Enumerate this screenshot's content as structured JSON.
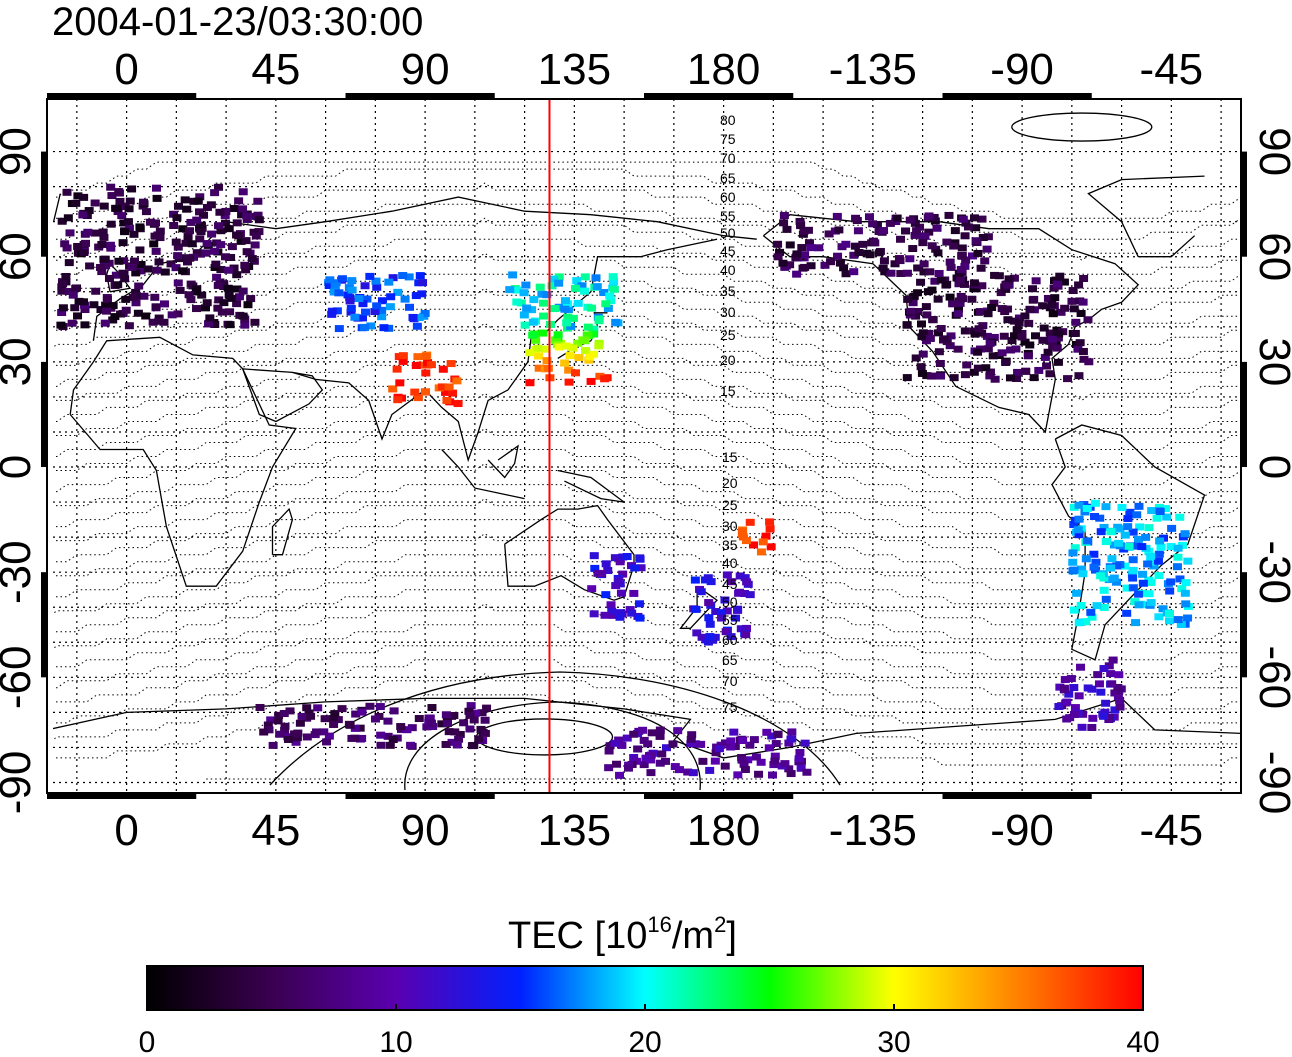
{
  "title": "2004-01-23/03:30:00",
  "map": {
    "lon_ticks_top": [
      "0",
      "45",
      "90",
      "135",
      "180",
      "-135",
      "-90",
      "-45"
    ],
    "lon_ticks_bottom": [
      "0",
      "45",
      "90",
      "135",
      "180",
      "-135",
      "-90",
      "-45"
    ],
    "lat_ticks_left": [
      "90",
      "60",
      "30",
      "0",
      "-30",
      "-60",
      "-90"
    ],
    "lat_ticks_right": [
      "90",
      "60",
      "30",
      "0",
      "-30",
      "-60",
      "-90"
    ],
    "lon_range": [
      -24,
      336
    ],
    "lat_range": [
      -93,
      105
    ],
    "marker_longitude": 127.5,
    "contour_labels_north": [
      "80",
      "75",
      "70",
      "65",
      "60",
      "55",
      "50",
      "45",
      "40",
      "35",
      "30",
      "25",
      "20",
      "15"
    ],
    "contour_labels_south": [
      "15",
      "20",
      "25",
      "30",
      "35",
      "40",
      "45",
      "50",
      "55",
      "60",
      "65",
      "70",
      "75"
    ],
    "colors": {
      "marker": "#ff0000",
      "grid": "#000000"
    }
  },
  "colorbar": {
    "label_prefix": "TEC  [10",
    "label_exp": "16",
    "label_mid": "/m",
    "label_exp2": "2",
    "label_suffix": "]",
    "ticks": [
      "0",
      "10",
      "20",
      "30",
      "40"
    ],
    "range": [
      0,
      40
    ],
    "colormap": [
      "#000000",
      "#3a0050",
      "#5a00b0",
      "#0020ff",
      "#00ffff",
      "#00ff00",
      "#ffff00",
      "#ff8000",
      "#ff0000"
    ]
  },
  "chart_data": {
    "type": "heatmap",
    "title": "2004-01-23/03:30:00",
    "xlabel": "",
    "ylabel": "",
    "colorbar_label": "TEC [10^16/m^2]",
    "value_range": [
      0,
      40
    ],
    "regions": [
      {
        "lon": [
          -20,
          40
        ],
        "lat": [
          40,
          80
        ],
        "tec": 4
      },
      {
        "lon": [
          -125,
          -70
        ],
        "lat": [
          25,
          55
        ],
        "tec": 4
      },
      {
        "lon": [
          -165,
          -100
        ],
        "lat": [
          55,
          72
        ],
        "tec": 5
      },
      {
        "lon": [
          120,
          145
        ],
        "lat": [
          24,
          40
        ],
        "tec": 33
      },
      {
        "lon": [
          115,
          148
        ],
        "lat": [
          40,
          55
        ],
        "tec": 20
      },
      {
        "lon": [
          80,
          100
        ],
        "lat": [
          18,
          32
        ],
        "tec": 38
      },
      {
        "lon": [
          60,
          90
        ],
        "lat": [
          38,
          55
        ],
        "tec": 15
      },
      {
        "lon": [
          -75,
          -40
        ],
        "lat": [
          -45,
          -10
        ],
        "tec": 18
      },
      {
        "lon": [
          -80,
          -60
        ],
        "lat": [
          -75,
          -55
        ],
        "tec": 10
      },
      {
        "lon": [
          170,
          188
        ],
        "lat": [
          -50,
          -30
        ],
        "tec": 12
      },
      {
        "lon": [
          140,
          155
        ],
        "lat": [
          -45,
          -25
        ],
        "tec": 12
      },
      {
        "lon": [
          185,
          195
        ],
        "lat": [
          -25,
          -15
        ],
        "tec": 38
      },
      {
        "lon": [
          40,
          110
        ],
        "lat": [
          -80,
          -68
        ],
        "tec": 6
      },
      {
        "lon": [
          145,
          205
        ],
        "lat": [
          -88,
          -75
        ],
        "tec": 9
      }
    ]
  }
}
